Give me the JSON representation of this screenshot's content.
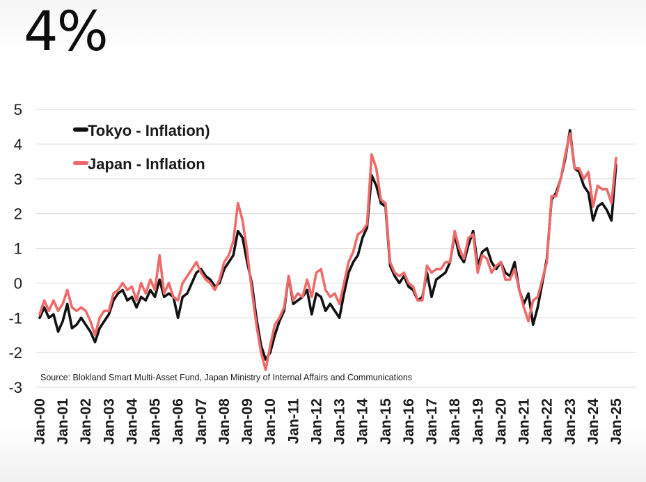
{
  "headline": "4%",
  "chart_data": {
    "type": "line",
    "title": "",
    "xlabel": "",
    "ylabel": "",
    "ylim": [
      -3,
      5
    ],
    "yticks": [
      "5",
      "4",
      "3",
      "2",
      "1",
      "0",
      "-1",
      "-2",
      "-3"
    ],
    "grid": true,
    "legend_position": "top-left",
    "x_tick_labels": [
      "Jan-00",
      "Jan-01",
      "Jan-02",
      "Jan-03",
      "Jan-04",
      "Jan-05",
      "Jan-06",
      "Jan-07",
      "Jan-08",
      "Jan-09",
      "Jan-10",
      "Jan-11",
      "Jan-12",
      "Jan-13",
      "Jan-14",
      "Jan-15",
      "Jan-16",
      "Jan-17",
      "Jan-18",
      "Jan-19",
      "Jan-20",
      "Jan-21",
      "Jan-22",
      "Jan-23",
      "Jan-24",
      "Jan-25"
    ],
    "source": "Source: Blokland Smart Multi-Asset Fund,  Japan Ministry of Internal Affairs and Communications",
    "series": [
      {
        "name": "Tokyo - Inflation)",
        "color": "#111111",
        "points": [
          [
            2000.0,
            -1.0
          ],
          [
            2000.2,
            -0.7
          ],
          [
            2000.4,
            -1.0
          ],
          [
            2000.6,
            -0.9
          ],
          [
            2000.8,
            -1.4
          ],
          [
            2001.0,
            -1.1
          ],
          [
            2001.2,
            -0.6
          ],
          [
            2001.4,
            -1.3
          ],
          [
            2001.6,
            -1.2
          ],
          [
            2001.8,
            -1.0
          ],
          [
            2002.0,
            -1.2
          ],
          [
            2002.2,
            -1.4
          ],
          [
            2002.4,
            -1.7
          ],
          [
            2002.6,
            -1.3
          ],
          [
            2002.8,
            -1.1
          ],
          [
            2003.0,
            -0.9
          ],
          [
            2003.2,
            -0.5
          ],
          [
            2003.4,
            -0.3
          ],
          [
            2003.6,
            -0.2
          ],
          [
            2003.8,
            -0.5
          ],
          [
            2004.0,
            -0.4
          ],
          [
            2004.2,
            -0.7
          ],
          [
            2004.4,
            -0.4
          ],
          [
            2004.6,
            -0.5
          ],
          [
            2004.8,
            -0.2
          ],
          [
            2005.0,
            -0.4
          ],
          [
            2005.2,
            0.1
          ],
          [
            2005.4,
            -0.4
          ],
          [
            2005.6,
            -0.3
          ],
          [
            2005.8,
            -0.4
          ],
          [
            2006.0,
            -1.0
          ],
          [
            2006.2,
            -0.4
          ],
          [
            2006.4,
            -0.3
          ],
          [
            2006.6,
            0.0
          ],
          [
            2006.8,
            0.3
          ],
          [
            2007.0,
            0.4
          ],
          [
            2007.2,
            0.2
          ],
          [
            2007.4,
            0.1
          ],
          [
            2007.6,
            -0.1
          ],
          [
            2007.8,
            0.0
          ],
          [
            2008.0,
            0.4
          ],
          [
            2008.2,
            0.6
          ],
          [
            2008.4,
            0.8
          ],
          [
            2008.6,
            1.5
          ],
          [
            2008.8,
            1.3
          ],
          [
            2009.0,
            0.6
          ],
          [
            2009.2,
            0.0
          ],
          [
            2009.4,
            -1.0
          ],
          [
            2009.6,
            -1.8
          ],
          [
            2009.8,
            -2.2
          ],
          [
            2010.0,
            -2.0
          ],
          [
            2010.2,
            -1.5
          ],
          [
            2010.4,
            -1.1
          ],
          [
            2010.6,
            -0.8
          ],
          [
            2010.8,
            0.2
          ],
          [
            2011.0,
            -0.6
          ],
          [
            2011.2,
            -0.5
          ],
          [
            2011.4,
            -0.4
          ],
          [
            2011.6,
            -0.2
          ],
          [
            2011.8,
            -0.9
          ],
          [
            2012.0,
            -0.3
          ],
          [
            2012.2,
            -0.4
          ],
          [
            2012.4,
            -0.8
          ],
          [
            2012.6,
            -0.6
          ],
          [
            2012.8,
            -0.8
          ],
          [
            2013.0,
            -1.0
          ],
          [
            2013.2,
            -0.3
          ],
          [
            2013.4,
            0.3
          ],
          [
            2013.6,
            0.6
          ],
          [
            2013.8,
            0.8
          ],
          [
            2014.0,
            1.3
          ],
          [
            2014.2,
            1.6
          ],
          [
            2014.4,
            3.1
          ],
          [
            2014.6,
            2.8
          ],
          [
            2014.8,
            2.3
          ],
          [
            2015.0,
            2.2
          ],
          [
            2015.2,
            0.5
          ],
          [
            2015.4,
            0.2
          ],
          [
            2015.6,
            0.0
          ],
          [
            2015.8,
            0.2
          ],
          [
            2016.0,
            -0.1
          ],
          [
            2016.2,
            -0.2
          ],
          [
            2016.4,
            -0.5
          ],
          [
            2016.6,
            -0.4
          ],
          [
            2016.8,
            0.3
          ],
          [
            2017.0,
            -0.4
          ],
          [
            2017.2,
            0.1
          ],
          [
            2017.4,
            0.2
          ],
          [
            2017.6,
            0.3
          ],
          [
            2017.8,
            0.6
          ],
          [
            2018.0,
            1.4
          ],
          [
            2018.2,
            0.8
          ],
          [
            2018.4,
            0.6
          ],
          [
            2018.6,
            1.1
          ],
          [
            2018.8,
            1.5
          ],
          [
            2019.0,
            0.5
          ],
          [
            2019.2,
            0.9
          ],
          [
            2019.4,
            1.0
          ],
          [
            2019.6,
            0.6
          ],
          [
            2019.8,
            0.4
          ],
          [
            2020.0,
            0.6
          ],
          [
            2020.2,
            0.3
          ],
          [
            2020.4,
            0.2
          ],
          [
            2020.6,
            0.6
          ],
          [
            2020.8,
            -0.2
          ],
          [
            2021.0,
            -0.6
          ],
          [
            2021.2,
            -0.3
          ],
          [
            2021.4,
            -1.2
          ],
          [
            2021.6,
            -0.7
          ],
          [
            2021.8,
            0.0
          ],
          [
            2022.0,
            0.7
          ],
          [
            2022.2,
            2.4
          ],
          [
            2022.4,
            2.6
          ],
          [
            2022.6,
            3.0
          ],
          [
            2022.8,
            3.6
          ],
          [
            2023.0,
            4.4
          ],
          [
            2023.2,
            3.3
          ],
          [
            2023.4,
            3.2
          ],
          [
            2023.6,
            2.8
          ],
          [
            2023.8,
            2.6
          ],
          [
            2024.0,
            1.8
          ],
          [
            2024.2,
            2.2
          ],
          [
            2024.4,
            2.3
          ],
          [
            2024.6,
            2.1
          ],
          [
            2024.8,
            1.8
          ],
          [
            2025.0,
            3.4
          ]
        ]
      },
      {
        "name": "Japan - Inflation",
        "color": "#ef6a6a",
        "points": [
          [
            2000.0,
            -0.9
          ],
          [
            2000.2,
            -0.5
          ],
          [
            2000.4,
            -0.8
          ],
          [
            2000.6,
            -0.5
          ],
          [
            2000.8,
            -0.8
          ],
          [
            2001.0,
            -0.6
          ],
          [
            2001.2,
            -0.2
          ],
          [
            2001.4,
            -0.7
          ],
          [
            2001.6,
            -0.8
          ],
          [
            2001.8,
            -0.7
          ],
          [
            2002.0,
            -0.8
          ],
          [
            2002.2,
            -1.1
          ],
          [
            2002.4,
            -1.5
          ],
          [
            2002.6,
            -1.0
          ],
          [
            2002.8,
            -0.8
          ],
          [
            2003.0,
            -0.8
          ],
          [
            2003.2,
            -0.3
          ],
          [
            2003.4,
            -0.2
          ],
          [
            2003.6,
            0.0
          ],
          [
            2003.8,
            -0.2
          ],
          [
            2004.0,
            -0.1
          ],
          [
            2004.2,
            -0.5
          ],
          [
            2004.4,
            0.0
          ],
          [
            2004.6,
            -0.3
          ],
          [
            2004.8,
            0.1
          ],
          [
            2005.0,
            -0.2
          ],
          [
            2005.2,
            0.8
          ],
          [
            2005.4,
            -0.3
          ],
          [
            2005.6,
            0.0
          ],
          [
            2005.8,
            -0.4
          ],
          [
            2006.0,
            -0.5
          ],
          [
            2006.2,
            0.0
          ],
          [
            2006.4,
            0.2
          ],
          [
            2006.6,
            0.4
          ],
          [
            2006.8,
            0.6
          ],
          [
            2007.0,
            0.3
          ],
          [
            2007.2,
            0.1
          ],
          [
            2007.4,
            0.0
          ],
          [
            2007.6,
            -0.2
          ],
          [
            2007.8,
            0.1
          ],
          [
            2008.0,
            0.6
          ],
          [
            2008.2,
            0.8
          ],
          [
            2008.4,
            1.2
          ],
          [
            2008.6,
            2.3
          ],
          [
            2008.8,
            1.8
          ],
          [
            2009.0,
            0.9
          ],
          [
            2009.2,
            -0.2
          ],
          [
            2009.4,
            -1.2
          ],
          [
            2009.6,
            -2.0
          ],
          [
            2009.8,
            -2.5
          ],
          [
            2010.0,
            -1.8
          ],
          [
            2010.2,
            -1.2
          ],
          [
            2010.4,
            -1.0
          ],
          [
            2010.6,
            -0.7
          ],
          [
            2010.8,
            0.2
          ],
          [
            2011.0,
            -0.5
          ],
          [
            2011.2,
            -0.3
          ],
          [
            2011.4,
            -0.4
          ],
          [
            2011.6,
            0.1
          ],
          [
            2011.8,
            -0.4
          ],
          [
            2012.0,
            0.3
          ],
          [
            2012.2,
            0.4
          ],
          [
            2012.4,
            -0.2
          ],
          [
            2012.6,
            -0.4
          ],
          [
            2012.8,
            -0.3
          ],
          [
            2013.0,
            -0.6
          ],
          [
            2013.2,
            0.0
          ],
          [
            2013.4,
            0.6
          ],
          [
            2013.6,
            0.9
          ],
          [
            2013.8,
            1.4
          ],
          [
            2014.0,
            1.5
          ],
          [
            2014.2,
            1.7
          ],
          [
            2014.4,
            3.7
          ],
          [
            2014.6,
            3.3
          ],
          [
            2014.8,
            2.4
          ],
          [
            2015.0,
            2.3
          ],
          [
            2015.2,
            0.6
          ],
          [
            2015.4,
            0.3
          ],
          [
            2015.6,
            0.2
          ],
          [
            2015.8,
            0.3
          ],
          [
            2016.0,
            0.0
          ],
          [
            2016.2,
            -0.1
          ],
          [
            2016.4,
            -0.5
          ],
          [
            2016.6,
            -0.5
          ],
          [
            2016.8,
            0.5
          ],
          [
            2017.0,
            0.3
          ],
          [
            2017.2,
            0.4
          ],
          [
            2017.4,
            0.4
          ],
          [
            2017.6,
            0.6
          ],
          [
            2017.8,
            0.6
          ],
          [
            2018.0,
            1.5
          ],
          [
            2018.2,
            1.0
          ],
          [
            2018.4,
            0.7
          ],
          [
            2018.6,
            1.3
          ],
          [
            2018.8,
            1.4
          ],
          [
            2019.0,
            0.3
          ],
          [
            2019.2,
            0.8
          ],
          [
            2019.4,
            0.7
          ],
          [
            2019.6,
            0.3
          ],
          [
            2019.8,
            0.5
          ],
          [
            2020.0,
            0.6
          ],
          [
            2020.2,
            0.1
          ],
          [
            2020.4,
            0.1
          ],
          [
            2020.6,
            0.4
          ],
          [
            2020.8,
            -0.2
          ],
          [
            2021.0,
            -0.7
          ],
          [
            2021.2,
            -1.1
          ],
          [
            2021.4,
            -0.5
          ],
          [
            2021.6,
            -0.4
          ],
          [
            2021.8,
            0.1
          ],
          [
            2022.0,
            0.6
          ],
          [
            2022.2,
            2.5
          ],
          [
            2022.4,
            2.5
          ],
          [
            2022.6,
            3.0
          ],
          [
            2022.8,
            3.7
          ],
          [
            2023.0,
            4.3
          ],
          [
            2023.2,
            3.3
          ],
          [
            2023.4,
            3.3
          ],
          [
            2023.6,
            3.0
          ],
          [
            2023.8,
            3.2
          ],
          [
            2024.0,
            2.2
          ],
          [
            2024.2,
            2.8
          ],
          [
            2024.4,
            2.7
          ],
          [
            2024.6,
            2.7
          ],
          [
            2024.8,
            2.3
          ],
          [
            2025.0,
            3.6
          ]
        ]
      }
    ]
  }
}
